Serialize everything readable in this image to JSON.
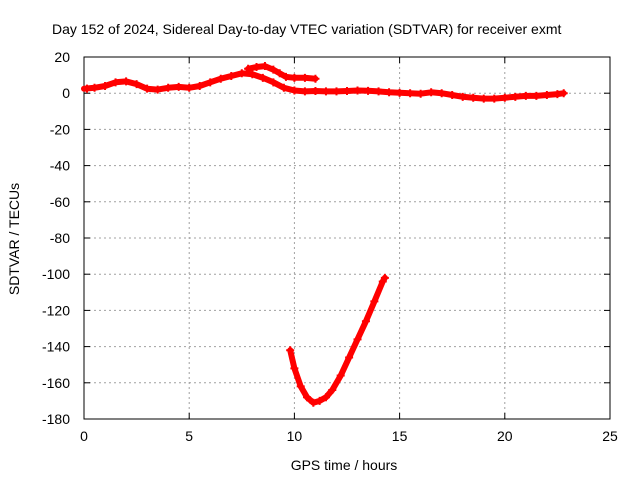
{
  "chart_data": {
    "type": "scatter",
    "title": "Day 152 of 2024, Sidereal Day-to-day VTEC variation (SDTVAR) for receiver exmt",
    "xlabel": "GPS time / hours",
    "ylabel": "SDTVAR / TECUs",
    "xlim": [
      0,
      25
    ],
    "ylim": [
      -180,
      20
    ],
    "xticks": [
      "0",
      "5",
      "10",
      "15",
      "20",
      "25"
    ],
    "yticks": [
      "20",
      "0",
      "-20",
      "-40",
      "-60",
      "-80",
      "-100",
      "-120",
      "-140",
      "-160",
      "-180"
    ],
    "grid": true,
    "marker": "+",
    "colors": {
      "series": "#ff0000",
      "grid": "#a0a0a0",
      "frame": "#000000"
    },
    "series": [
      {
        "values": [
          [
            0.0,
            2.5
          ],
          [
            0.5,
            3.0
          ],
          [
            1.0,
            4.0
          ],
          [
            1.5,
            6.0
          ],
          [
            2.0,
            6.5
          ],
          [
            2.5,
            5.0
          ],
          [
            3.0,
            2.5
          ],
          [
            3.5,
            2.0
          ],
          [
            4.0,
            3.0
          ],
          [
            4.5,
            3.5
          ],
          [
            5.0,
            3.0
          ],
          [
            5.5,
            4.0
          ],
          [
            6.0,
            6.0
          ],
          [
            6.5,
            8.0
          ],
          [
            7.0,
            9.5
          ],
          [
            7.5,
            11.0
          ],
          [
            8.0,
            10.5
          ],
          [
            8.5,
            8.5
          ],
          [
            9.0,
            6.0
          ],
          [
            9.5,
            3.0
          ],
          [
            10.0,
            1.5
          ],
          [
            10.5,
            1.0
          ],
          [
            11.0,
            1.2
          ],
          [
            11.5,
            1.0
          ],
          [
            12.0,
            1.0
          ],
          [
            12.5,
            1.2
          ],
          [
            13.0,
            1.5
          ],
          [
            13.5,
            1.3
          ],
          [
            14.0,
            1.0
          ],
          [
            14.5,
            0.5
          ],
          [
            15.0,
            0.2
          ],
          [
            15.5,
            0.0
          ],
          [
            16.0,
            -0.3
          ],
          [
            16.5,
            0.5
          ],
          [
            17.0,
            0.0
          ],
          [
            17.5,
            -1.0
          ],
          [
            18.0,
            -2.0
          ],
          [
            18.5,
            -2.5
          ],
          [
            19.0,
            -3.0
          ],
          [
            19.5,
            -3.0
          ],
          [
            20.0,
            -2.5
          ],
          [
            20.5,
            -2.0
          ],
          [
            21.0,
            -1.5
          ],
          [
            21.5,
            -1.5
          ],
          [
            22.0,
            -1.0
          ],
          [
            22.5,
            -0.5
          ],
          [
            22.8,
            0.0
          ]
        ]
      },
      {
        "values": [
          [
            7.8,
            13.5
          ],
          [
            8.2,
            14.5
          ],
          [
            8.6,
            15.0
          ],
          [
            9.0,
            13.0
          ],
          [
            9.3,
            11.0
          ],
          [
            9.6,
            9.0
          ],
          [
            10.0,
            8.5
          ],
          [
            10.5,
            8.5
          ],
          [
            11.0,
            8.0
          ]
        ]
      },
      {
        "values": [
          [
            9.8,
            -142
          ],
          [
            10.0,
            -152
          ],
          [
            10.3,
            -162
          ],
          [
            10.6,
            -168
          ],
          [
            10.9,
            -171
          ],
          [
            11.2,
            -170
          ],
          [
            11.5,
            -168
          ],
          [
            11.8,
            -164
          ],
          [
            12.2,
            -156
          ],
          [
            12.6,
            -146
          ],
          [
            13.0,
            -136
          ],
          [
            13.4,
            -126
          ],
          [
            13.8,
            -115
          ],
          [
            14.2,
            -104
          ],
          [
            14.3,
            -102
          ]
        ]
      }
    ]
  }
}
